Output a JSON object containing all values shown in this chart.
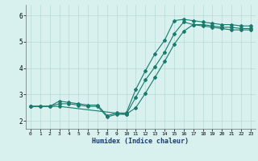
{
  "xlabel": "Humidex (Indice chaleur)",
  "xlim": [
    -0.5,
    23.5
  ],
  "ylim": [
    1.7,
    6.4
  ],
  "xticks": [
    0,
    1,
    2,
    3,
    4,
    5,
    6,
    7,
    8,
    9,
    10,
    11,
    12,
    13,
    14,
    15,
    16,
    17,
    18,
    19,
    20,
    21,
    22,
    23
  ],
  "yticks": [
    2,
    3,
    4,
    5,
    6
  ],
  "line_color": "#1a7a6e",
  "bg_color": "#d8f0ee",
  "grid_color": "#b8d8d4",
  "line1_x": [
    0,
    1,
    2,
    3,
    4,
    5,
    6,
    7,
    8,
    9,
    10,
    11,
    12,
    13,
    14,
    15,
    16,
    17,
    18,
    19,
    20,
    21,
    22,
    23
  ],
  "line1_y": [
    2.55,
    2.55,
    2.55,
    2.75,
    2.7,
    2.65,
    2.6,
    2.6,
    2.2,
    2.3,
    2.3,
    3.2,
    3.9,
    4.55,
    5.05,
    5.8,
    5.85,
    5.8,
    5.75,
    5.7,
    5.65,
    5.65,
    5.6,
    5.6
  ],
  "line1_markers": [
    0,
    1,
    2,
    3,
    4,
    5,
    6,
    7,
    8,
    9,
    10,
    11,
    12,
    13,
    14,
    15,
    16,
    17,
    18,
    19,
    20,
    21,
    22,
    23
  ],
  "line2_x": [
    0,
    1,
    2,
    3,
    4,
    5,
    6,
    7,
    8,
    9,
    10,
    11,
    12,
    13,
    14,
    15,
    16,
    17,
    18,
    19,
    20,
    21,
    22,
    23
  ],
  "line2_y": [
    2.55,
    2.55,
    2.55,
    2.65,
    2.65,
    2.6,
    2.55,
    2.55,
    2.15,
    2.25,
    2.25,
    2.9,
    3.55,
    4.05,
    4.6,
    5.3,
    5.75,
    5.65,
    5.65,
    5.6,
    5.55,
    5.55,
    5.5,
    5.5
  ],
  "line2_markers": [
    0,
    1,
    2,
    3,
    4,
    5,
    6,
    7,
    8,
    9,
    10,
    11,
    12,
    13,
    14,
    15,
    16,
    17,
    18,
    19,
    20,
    21,
    22,
    23
  ],
  "line3_x": [
    0,
    3,
    10,
    11,
    12,
    13,
    14,
    15,
    16,
    17,
    18,
    19,
    20,
    21,
    22,
    23
  ],
  "line3_y": [
    2.55,
    2.55,
    2.25,
    2.5,
    3.05,
    3.65,
    4.25,
    4.9,
    5.4,
    5.65,
    5.6,
    5.55,
    5.5,
    5.45,
    5.45,
    5.45
  ],
  "line3_markers_all": true,
  "marker_style": "D",
  "marker_size": 2.0,
  "linewidth": 0.8
}
